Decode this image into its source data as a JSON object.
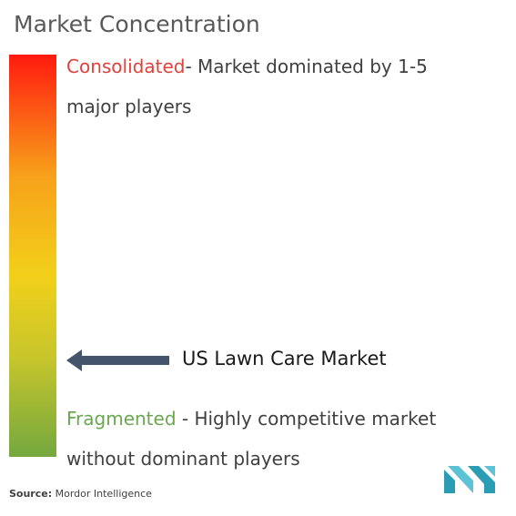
{
  "title": "Market Concentration",
  "consolidated": {
    "label": "Consolidated",
    "description": "- Market dominated by 1-5 major players"
  },
  "marker": {
    "label": "US Lawn Care Market"
  },
  "fragmented": {
    "label": "Fragmented",
    "description": "- Highly competitive market without dominant players"
  },
  "source": {
    "label": "Source:",
    "text": "Mordor Intelligence"
  }
}
